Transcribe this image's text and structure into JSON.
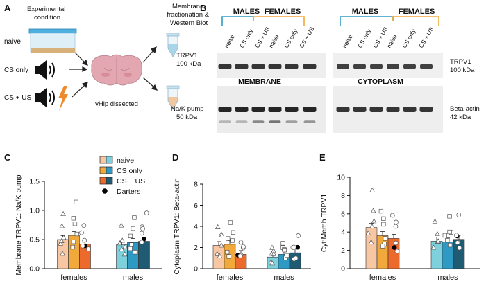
{
  "panels": {
    "A": {
      "letter": "A",
      "experimental_condition": "Experimental\ncondition",
      "conditions": [
        "naive",
        "CS only",
        "CS + US"
      ],
      "membrane_fractionation": "Membrane\nfractionation &\nWestern Blot",
      "vhip_dissected": "vHip dissected"
    },
    "B": {
      "letter": "B",
      "group_labels": [
        "MALES",
        "FEMALES",
        "MALES",
        "FEMALES"
      ],
      "lane_labels": [
        "naive",
        "CS only",
        "CS + US",
        "naive",
        "CS only",
        "CS + US"
      ],
      "trpv1_left": "TRPV1\n100 kDa",
      "trpv1_right": "TRPV1\n100 kDa",
      "membrane_label": "MEMBRANE",
      "cytoplasm_label": "CYTOPLASM",
      "nak_pump": "Na/K pump\n50 kDa",
      "beta_actin": "Beta-actin\n42 kDa",
      "colors": {
        "males_bracket": "#2e9ac4",
        "females_bracket": "#f2a93b"
      }
    },
    "legend": {
      "items": [
        {
          "label": "naive",
          "colors": [
            "#f7c6a3",
            "#7ed0dc"
          ]
        },
        {
          "label": "CS only",
          "colors": [
            "#f2a93b",
            "#2e9ac4"
          ]
        },
        {
          "label": "CS + US",
          "colors": [
            "#ec6a2c",
            "#1f5b73"
          ]
        },
        {
          "label": "Darters",
          "marker": "filled-circle"
        }
      ]
    }
  },
  "chart_data": [
    {
      "panel": "C",
      "type": "bar",
      "ylabel": "Membrane TRPV1: Na/K pump",
      "ylim": [
        0,
        1.5
      ],
      "yticks": [
        "0.0",
        "0.5",
        "1.0",
        "1.5"
      ],
      "categories": [
        "females",
        "males"
      ],
      "series": [
        {
          "name": "naive",
          "values": [
            0.5,
            0.41
          ]
        },
        {
          "name": "CS only",
          "values": [
            0.57,
            0.45
          ]
        },
        {
          "name": "CS + US",
          "values": [
            0.42,
            0.47
          ]
        }
      ]
    },
    {
      "panel": "D",
      "type": "bar",
      "ylabel": "Cytoplasm TRPV1: Beta-actin",
      "ylim": [
        0,
        8
      ],
      "yticks": [
        "0",
        "2",
        "4",
        "6",
        "8"
      ],
      "categories": [
        "females",
        "males"
      ],
      "series": [
        {
          "name": "naive",
          "values": [
            2.2,
            1.1
          ]
        },
        {
          "name": "CS only",
          "values": [
            2.3,
            1.35
          ]
        },
        {
          "name": "CS + US",
          "values": [
            1.35,
            1.5
          ]
        }
      ]
    },
    {
      "panel": "E",
      "type": "bar",
      "ylabel": "Cyt:Memb TRPV1",
      "ylim": [
        0,
        10
      ],
      "yticks": [
        "0",
        "2",
        "4",
        "6",
        "8",
        "10"
      ],
      "categories": [
        "females",
        "males"
      ],
      "series": [
        {
          "name": "naive",
          "values": [
            4.5,
            3.0
          ]
        },
        {
          "name": "CS only",
          "values": [
            3.6,
            2.9
          ]
        },
        {
          "name": "CS + US",
          "values": [
            3.3,
            3.2
          ]
        }
      ]
    }
  ]
}
